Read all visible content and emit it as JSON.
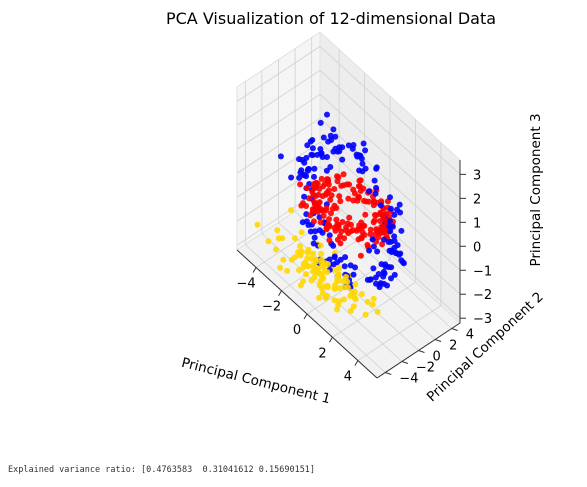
{
  "chart_data": {
    "type": "scatter3d",
    "title": "PCA Visualization of 12-dimensional Data",
    "xlabel": "Principal Component 1",
    "ylabel": "Principal Component 2",
    "zlabel": "Principal Component 3",
    "xlim": [
      -5.5,
      5.5
    ],
    "ylim": [
      -5,
      5
    ],
    "zlim": [
      -3.2,
      3.6
    ],
    "x_ticks": [
      -4,
      -2,
      0,
      2,
      4
    ],
    "y_ticks": [
      -4,
      -2,
      0,
      2,
      4
    ],
    "z_ticks": [
      -3,
      -2,
      -1,
      0,
      1,
      2,
      3
    ],
    "x_tick_labels": [
      "−4",
      "−2",
      "0",
      "2",
      "4"
    ],
    "y_tick_labels": [
      "−4",
      "−2",
      "0",
      "2",
      "4"
    ],
    "z_tick_labels": [
      "−3",
      "−2",
      "−1",
      "0",
      "1",
      "2",
      "3"
    ],
    "grid": true,
    "series": [
      {
        "color": "#0000ff",
        "cluster": "blue",
        "approx_points": 170
      },
      {
        "color": "#ff0000",
        "cluster": "red",
        "approx_points": 190
      },
      {
        "color": "#ffd700",
        "cluster": "gold",
        "approx_points": 110
      }
    ]
  },
  "output": {
    "text": "Explained variance ratio: [0.4763583  0.31041612 0.15690151]"
  }
}
